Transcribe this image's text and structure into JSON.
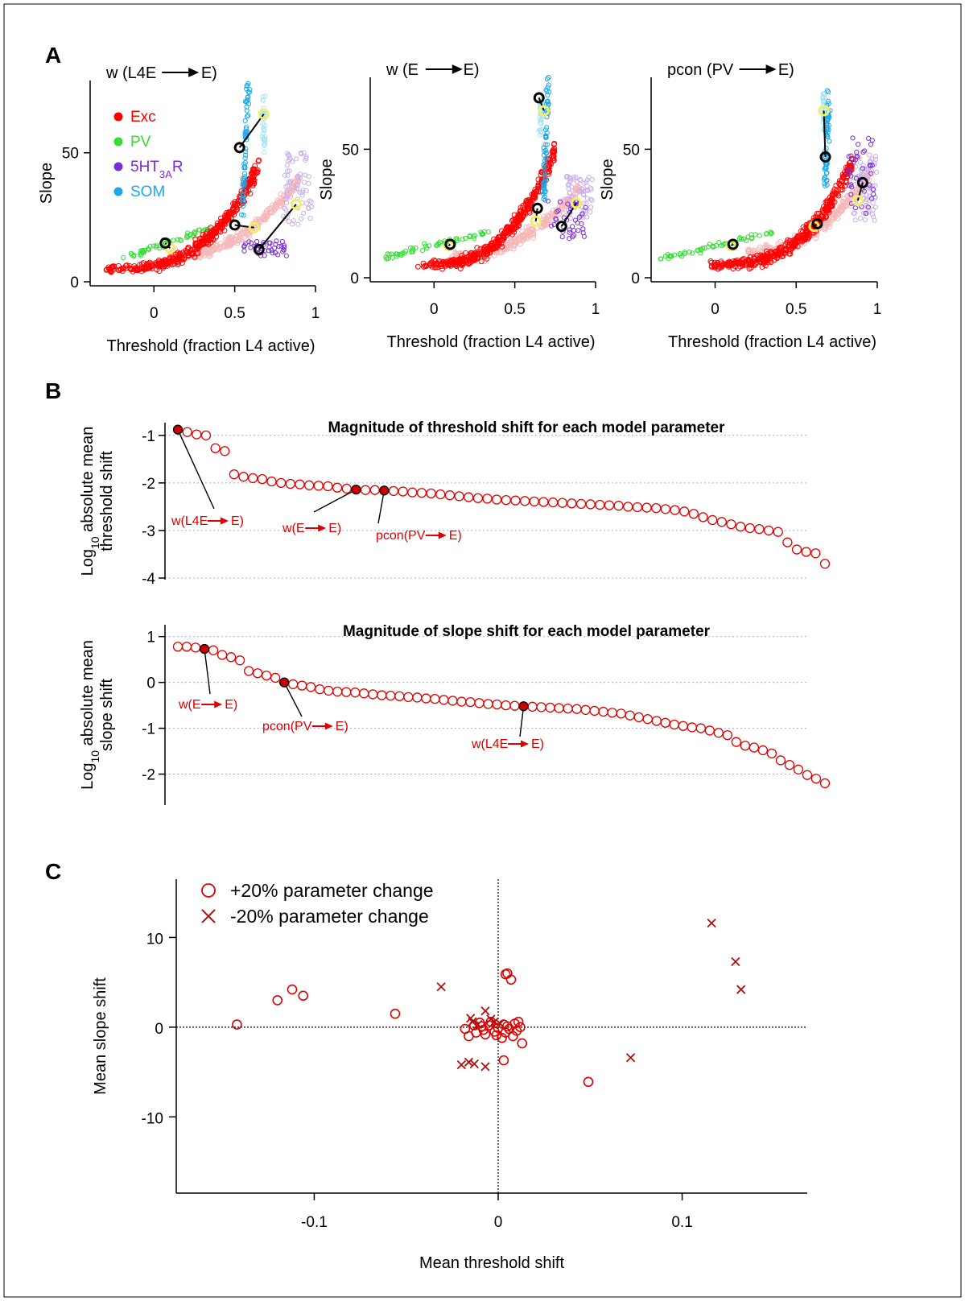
{
  "panel_letters": {
    "a": "A",
    "b": "B",
    "c": "C"
  },
  "colors": {
    "exc": "#ff0000",
    "exc_light": "#f7b8b8",
    "pv": "#33dd33",
    "pv_light": "#aaeeaa",
    "htr": "#7a2fd4",
    "htr_light": "#c9b0e8",
    "som": "#1ea8e8",
    "som_light": "#a8e4f4",
    "marker_before": "#000000",
    "marker_after": "#f0f060",
    "red_series": "#e00000",
    "darkred_series": "#b01010",
    "grid": "#a9a9d6"
  },
  "legend_A": [
    {
      "label": "Exc",
      "color": "#ff0000"
    },
    {
      "label": "PV",
      "color": "#33dd33"
    },
    {
      "label": "5HT",
      "sub": "3A",
      "suffix": "R",
      "color": "#7a2fd4"
    },
    {
      "label": "SOM",
      "color": "#1ea8e8"
    }
  ],
  "chart_data": [
    {
      "type": "scatter",
      "panel": "A1",
      "title_pre": "w (L4E",
      "title_post": "E)",
      "xlabel": "Threshold (fraction L4 active)",
      "ylabel": "Slope",
      "xlim": [
        -0.35,
        1.0
      ],
      "ylim": [
        0,
        78
      ],
      "xticks": [
        0,
        0.5,
        1
      ],
      "xtick_labels": [
        "0",
        "0.5",
        "1"
      ],
      "yticks": [
        0,
        50
      ],
      "ytick_labels": [
        "0",
        "50"
      ],
      "clouds": {
        "exc": {
          "x0": -0.3,
          "x1": 0.65,
          "ymin": 5,
          "ymax": 45
        },
        "pv": {
          "xmin": -0.2,
          "xmax": 0.35,
          "ymin": 9,
          "ymax": 21
        },
        "htr": {
          "xmin": 0.55,
          "xmax": 0.82,
          "ymin": 10,
          "ymax": 16
        },
        "som": {
          "x": 0.55,
          "ymin": 25,
          "ymax": 78
        }
      },
      "light_clouds": {
        "exc": {
          "x0": 0.1,
          "x1": 0.9,
          "ymin": 10,
          "ymax": 40
        },
        "htr": {
          "xmin": 0.8,
          "xmax": 0.98,
          "ymin": 22,
          "ymax": 50
        },
        "som": {
          "x": 0.68,
          "ymin": 50,
          "ymax": 72
        }
      },
      "shifts": [
        {
          "cell": "PV",
          "before": [
            0.07,
            15
          ],
          "after": [
            0.1,
            13
          ]
        },
        {
          "cell": "Exc",
          "before": [
            0.5,
            22
          ],
          "after": [
            0.62,
            21
          ]
        },
        {
          "cell": "5HT3AR",
          "before": [
            0.65,
            12.5
          ],
          "after": [
            0.88,
            30
          ]
        },
        {
          "cell": "SOM",
          "before": [
            0.53,
            52
          ],
          "after": [
            0.68,
            65
          ]
        }
      ]
    },
    {
      "type": "scatter",
      "panel": "A2",
      "title_pre": "w (E",
      "title_post": "E)",
      "xlabel": "Threshold (fraction L4 active)",
      "ylabel": "Slope",
      "xlim": [
        -0.35,
        1.0
      ],
      "ylim": [
        0,
        78
      ],
      "xticks": [
        0,
        0.5,
        1
      ],
      "xtick_labels": [
        "0",
        "0.5",
        "1"
      ],
      "yticks": [
        0,
        50
      ],
      "ytick_labels": [
        "0",
        "50"
      ],
      "clouds": {
        "exc": {
          "x0": -0.1,
          "x1": 0.75,
          "ymin": 5,
          "ymax": 50
        },
        "pv": {
          "xmin": -0.3,
          "xmax": 0.35,
          "ymin": 8,
          "ymax": 18
        },
        "htr": {
          "xmin": 0.7,
          "xmax": 0.95,
          "ymin": 15,
          "ymax": 30
        },
        "som": {
          "x": 0.68,
          "ymin": 30,
          "ymax": 78
        }
      },
      "light_clouds": {
        "exc": {
          "x0": 0.1,
          "x1": 0.9,
          "ymin": 8,
          "ymax": 35
        },
        "htr": {
          "xmin": 0.82,
          "xmax": 0.98,
          "ymin": 22,
          "ymax": 40
        },
        "som": {
          "x": 0.66,
          "ymin": 55,
          "ymax": 70
        }
      },
      "shifts": [
        {
          "cell": "PV",
          "before": [
            0.1,
            13
          ],
          "after": [
            0.09,
            12.5
          ]
        },
        {
          "cell": "Exc",
          "before": [
            0.64,
            27
          ],
          "after": [
            0.63,
            22
          ]
        },
        {
          "cell": "5HT3AR",
          "before": [
            0.79,
            20
          ],
          "after": [
            0.88,
            29
          ]
        },
        {
          "cell": "SOM",
          "before": [
            0.65,
            70
          ],
          "after": [
            0.68,
            65
          ]
        }
      ]
    },
    {
      "type": "scatter",
      "panel": "A3",
      "title_pre": "pcon (PV",
      "title_post": "E)",
      "xlabel": "Threshold (fraction L4 active)",
      "ylabel": "Slope",
      "xlim": [
        -0.35,
        1.0
      ],
      "ylim": [
        0,
        78
      ],
      "xticks": [
        0,
        0.5,
        1
      ],
      "xtick_labels": [
        "0",
        "0.5",
        "1"
      ],
      "yticks": [
        0,
        50
      ],
      "ytick_labels": [
        "0",
        "50"
      ],
      "clouds": {
        "exc": {
          "x0": -0.05,
          "x1": 0.85,
          "ymin": 5,
          "ymax": 45
        },
        "pv": {
          "xmin": -0.35,
          "xmax": 0.35,
          "ymin": 7,
          "ymax": 18
        },
        "htr": {
          "xmin": 0.8,
          "xmax": 0.98,
          "ymin": 25,
          "ymax": 55
        },
        "som": {
          "x": 0.68,
          "ymin": 35,
          "ymax": 74
        }
      },
      "light_clouds": {
        "exc": {
          "x0": 0.2,
          "x1": 0.95,
          "ymin": 10,
          "ymax": 40
        },
        "htr": {
          "xmin": 0.85,
          "xmax": 1.0,
          "ymin": 22,
          "ymax": 48
        },
        "som": {
          "x": 0.67,
          "ymin": 55,
          "ymax": 72
        }
      },
      "shifts": [
        {
          "cell": "PV",
          "before": [
            0.11,
            13
          ],
          "after": [
            0.1,
            12.5
          ]
        },
        {
          "cell": "Exc",
          "before": [
            0.63,
            21
          ],
          "after": [
            0.61,
            20
          ]
        },
        {
          "cell": "5HT3AR",
          "before": [
            0.91,
            37
          ],
          "after": [
            0.88,
            30
          ]
        },
        {
          "cell": "SOM",
          "before": [
            0.68,
            47
          ],
          "after": [
            0.67,
            65
          ]
        }
      ]
    },
    {
      "type": "scatter",
      "panel": "B1",
      "title": "Magnitude of threshold shift for each model parameter",
      "ylabel_line1": "Log",
      "ylabel_sub": "10",
      "ylabel_line1_suffix": " absolute mean",
      "ylabel_line2": "threshold shift",
      "ylim": [
        -4,
        -0.75
      ],
      "yticks": [
        -4,
        -3,
        -2,
        -1
      ],
      "ytick_labels": [
        "-4",
        "-3",
        "-2",
        "-1"
      ],
      "values": [
        -0.88,
        -0.93,
        -0.98,
        -1.0,
        -1.27,
        -1.33,
        -1.82,
        -1.87,
        -1.9,
        -1.92,
        -1.97,
        -2.0,
        -2.02,
        -2.03,
        -2.05,
        -2.06,
        -2.07,
        -2.1,
        -2.12,
        -2.14,
        -2.15,
        -2.15,
        -2.16,
        -2.17,
        -2.18,
        -2.2,
        -2.21,
        -2.22,
        -2.24,
        -2.26,
        -2.28,
        -2.3,
        -2.32,
        -2.33,
        -2.35,
        -2.36,
        -2.37,
        -2.38,
        -2.39,
        -2.4,
        -2.41,
        -2.42,
        -2.43,
        -2.44,
        -2.45,
        -2.46,
        -2.47,
        -2.48,
        -2.5,
        -2.51,
        -2.52,
        -2.53,
        -2.55,
        -2.57,
        -2.6,
        -2.65,
        -2.72,
        -2.78,
        -2.82,
        -2.87,
        -2.92,
        -2.95,
        -2.97,
        -3.0,
        -3.03,
        -3.25,
        -3.4,
        -3.45,
        -3.48,
        -3.7
      ],
      "highlighted": [
        {
          "index": 0,
          "label_pre": "w(L4E",
          "label_post": "E)"
        },
        {
          "index": 19,
          "label_pre": "w(E",
          "label_post": "E)"
        },
        {
          "index": 22,
          "label_pre": "pcon(PV",
          "label_post": "E)"
        }
      ]
    },
    {
      "type": "scatter",
      "panel": "B2",
      "title": "Magnitude of slope shift for each model parameter",
      "ylabel_line1": "Log",
      "ylabel_sub": "10",
      "ylabel_line1_suffix": " absolute mean",
      "ylabel_line2": "slope shift",
      "ylim": [
        -2.5,
        1.1
      ],
      "yticks": [
        -2,
        -1,
        0,
        1
      ],
      "ytick_labels": [
        "-2",
        "-1",
        "0",
        "1"
      ],
      "values": [
        0.78,
        0.78,
        0.76,
        0.73,
        0.7,
        0.6,
        0.55,
        0.48,
        0.25,
        0.2,
        0.15,
        0.1,
        0.0,
        -0.04,
        -0.07,
        -0.1,
        -0.15,
        -0.18,
        -0.2,
        -0.21,
        -0.22,
        -0.24,
        -0.26,
        -0.28,
        -0.29,
        -0.3,
        -0.32,
        -0.33,
        -0.35,
        -0.36,
        -0.38,
        -0.4,
        -0.42,
        -0.43,
        -0.45,
        -0.47,
        -0.48,
        -0.5,
        -0.51,
        -0.52,
        -0.53,
        -0.54,
        -0.55,
        -0.56,
        -0.57,
        -0.58,
        -0.6,
        -0.62,
        -0.64,
        -0.66,
        -0.68,
        -0.72,
        -0.76,
        -0.8,
        -0.84,
        -0.88,
        -0.92,
        -0.95,
        -0.98,
        -1.0,
        -1.05,
        -1.1,
        -1.15,
        -1.3,
        -1.38,
        -1.42,
        -1.48,
        -1.55,
        -1.7,
        -1.8,
        -1.9,
        -2.02,
        -2.1,
        -2.2
      ],
      "highlighted": [
        {
          "index": 3,
          "label_pre": "w(E",
          "label_post": "E)"
        },
        {
          "index": 12,
          "label_pre": "pcon(PV",
          "label_post": "E)"
        },
        {
          "index": 39,
          "label_pre": "w(L4E",
          "label_post": "E)"
        }
      ]
    },
    {
      "type": "scatter",
      "panel": "C",
      "xlabel": "Mean threshold shift",
      "ylabel": "Mean slope shift",
      "xlim": [
        -0.175,
        0.168
      ],
      "ylim": [
        -18.5,
        16.5
      ],
      "xticks": [
        -0.1,
        0,
        0.1
      ],
      "xtick_labels": [
        "-0.1",
        "0",
        "0.1"
      ],
      "yticks": [
        -10,
        0,
        10
      ],
      "ytick_labels": [
        "-10",
        "0",
        "10"
      ],
      "legend": [
        {
          "marker": "circle",
          "label": "+20% parameter change"
        },
        {
          "marker": "x",
          "label": "-20% parameter change"
        }
      ],
      "series": [
        {
          "marker": "circle",
          "points": [
            [
              -0.142,
              0.3
            ],
            [
              -0.12,
              3.0
            ],
            [
              -0.112,
              4.2
            ],
            [
              -0.106,
              3.5
            ],
            [
              -0.056,
              1.5
            ],
            [
              0.005,
              6.0
            ],
            [
              0.007,
              5.3
            ],
            [
              0.004,
              5.9
            ],
            [
              0.003,
              -3.7
            ],
            [
              0.049,
              -6.1
            ],
            [
              0.013,
              -1.8
            ],
            [
              -0.016,
              -1.0
            ],
            [
              -0.012,
              -0.6
            ],
            [
              -0.008,
              -0.3
            ],
            [
              -0.005,
              0.2
            ],
            [
              -0.002,
              -0.5
            ],
            [
              0.0,
              -0.1
            ],
            [
              0.003,
              0.3
            ],
            [
              0.006,
              -0.2
            ],
            [
              0.009,
              0.4
            ],
            [
              0.011,
              0.6
            ],
            [
              -0.01,
              0.5
            ],
            [
              -0.007,
              -0.8
            ],
            [
              0.002,
              -1.2
            ],
            [
              0.008,
              -1.0
            ],
            [
              -0.004,
              0.6
            ],
            [
              0.005,
              0.1
            ],
            [
              -0.013,
              0.2
            ],
            [
              0.01,
              -0.4
            ],
            [
              -0.001,
              -0.9
            ],
            [
              -0.018,
              -0.2
            ],
            [
              0.004,
              -0.6
            ],
            [
              -0.009,
              0.1
            ],
            [
              0.012,
              0.0
            ]
          ]
        },
        {
          "marker": "x",
          "points": [
            [
              0.116,
              11.6
            ],
            [
              0.129,
              7.3
            ],
            [
              0.132,
              4.2
            ],
            [
              -0.031,
              4.5
            ],
            [
              0.072,
              -3.4
            ],
            [
              -0.02,
              -4.2
            ],
            [
              -0.016,
              -3.9
            ],
            [
              -0.007,
              -4.4
            ],
            [
              -0.013,
              -4.1
            ],
            [
              -0.015,
              1.0
            ],
            [
              -0.007,
              1.8
            ],
            [
              -0.004,
              0.9
            ],
            [
              -0.011,
              0.3
            ],
            [
              -0.002,
              0.6
            ],
            [
              -0.014,
              0.6
            ],
            [
              0.001,
              0.4
            ]
          ]
        }
      ]
    }
  ]
}
